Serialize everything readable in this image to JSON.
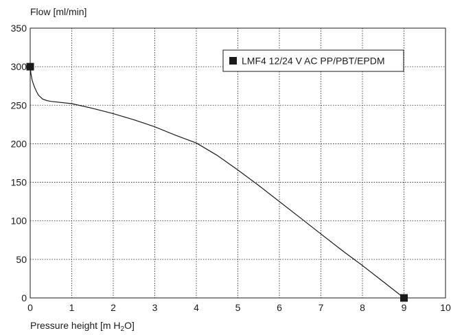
{
  "chart_data": {
    "type": "line",
    "title": "",
    "ylabel": "Flow [ml/min]",
    "xlabel": {
      "prefix": "Pressure height [m H",
      "subscript": "2",
      "suffix": "O]"
    },
    "xlim": [
      0,
      10
    ],
    "ylim": [
      0,
      350
    ],
    "xticks": [
      0,
      1,
      2,
      3,
      4,
      5,
      6,
      7,
      8,
      9,
      10
    ],
    "yticks": [
      0,
      50,
      100,
      150,
      200,
      250,
      300,
      350
    ],
    "grid": true,
    "legend_position": "top-right",
    "series": [
      {
        "name": "LMF4 12/24 V AC PP/PBT/EPDM",
        "color": "#1a1a1a",
        "x": [
          0,
          0.02,
          0.05,
          0.1,
          0.15,
          0.2,
          0.3,
          0.4,
          0.5,
          1.0,
          1.5,
          2.0,
          2.5,
          3.0,
          3.5,
          4.0,
          4.5,
          5.0,
          5.5,
          6.0,
          6.5,
          7.0,
          7.5,
          8.0,
          8.5,
          9.0
        ],
        "y": [
          300,
          290,
          282,
          274,
          268,
          263,
          258,
          256,
          255,
          252,
          246,
          239,
          231,
          222,
          211,
          201,
          185,
          166,
          146,
          125,
          104,
          83,
          62,
          42,
          21,
          0
        ],
        "markers_x": [
          0,
          9
        ],
        "markers_y": [
          300,
          0
        ]
      }
    ]
  }
}
